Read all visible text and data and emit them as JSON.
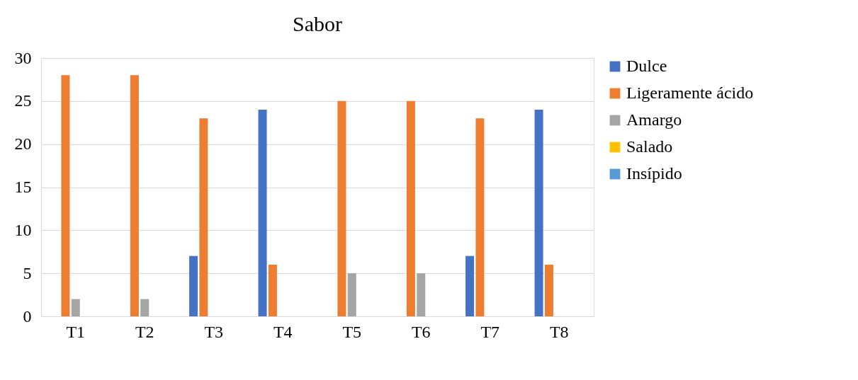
{
  "chart_data": {
    "type": "bar",
    "title": "Sabor",
    "categories": [
      "T1",
      "T2",
      "T3",
      "T4",
      "T5",
      "T6",
      "T7",
      "T8"
    ],
    "series": [
      {
        "name": "Dulce",
        "color": "#4472c4",
        "values": [
          0,
          0,
          7,
          24,
          0,
          0,
          7,
          24
        ]
      },
      {
        "name": "Ligeramente ácido",
        "color": "#ed7d31",
        "values": [
          28,
          28,
          23,
          6,
          25,
          25,
          23,
          6
        ]
      },
      {
        "name": "Amargo",
        "color": "#a5a5a5",
        "values": [
          2,
          2,
          0,
          0,
          5,
          5,
          0,
          0
        ]
      },
      {
        "name": "Salado",
        "color": "#ffc000",
        "values": [
          0,
          0,
          0,
          0,
          0,
          0,
          0,
          0
        ]
      },
      {
        "name": "Insípido",
        "color": "#5b9bd5",
        "values": [
          0,
          0,
          0,
          0,
          0,
          0,
          0,
          0
        ]
      }
    ],
    "ylim": [
      0,
      30
    ],
    "yticks": [
      0,
      5,
      10,
      15,
      20,
      25,
      30
    ],
    "grid": "y",
    "legend": "right"
  }
}
